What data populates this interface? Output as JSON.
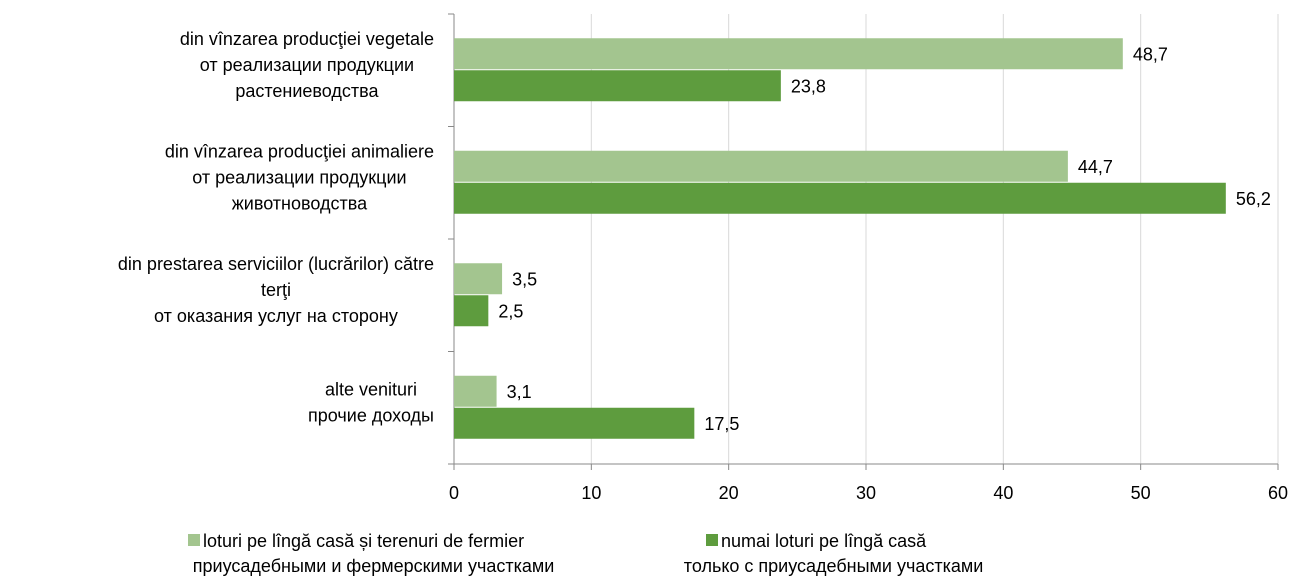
{
  "chart_data": {
    "type": "barh",
    "categories": [
      [
        "din vînzarea producţiei  vegetale",
        "от реализации продукции",
        "растениеводства"
      ],
      [
        "din vînzarea producţiei  animaliere",
        "от реализации продукции",
        "животноводства"
      ],
      [
        "din prestarea serviciilor (lucrărilor) către",
        "terţi",
        "от оказания услуг на сторону"
      ],
      [
        "alte venituri",
        "прочие доходы"
      ]
    ],
    "series": [
      {
        "name": [
          "loturi pe lîngă casă și terenuri de fermier",
          "приусадебными и фермерскими участками"
        ],
        "color": "#a3c58f",
        "values": [
          48.7,
          44.7,
          3.5,
          3.1
        ],
        "value_labels": [
          "48,7",
          "44,7",
          "3,5",
          "3,1"
        ]
      },
      {
        "name": [
          "numai loturi pe lîngă casă",
          "только с приусадебными участками"
        ],
        "color": "#5e9c3e",
        "values": [
          23.8,
          56.2,
          2.5,
          17.5
        ],
        "value_labels": [
          "23,8",
          "56,2",
          "2,5",
          "17,5"
        ]
      }
    ],
    "xlim": [
      0,
      60
    ],
    "xticks": [
      0,
      10,
      20,
      30,
      40,
      50,
      60
    ],
    "grid": true
  }
}
